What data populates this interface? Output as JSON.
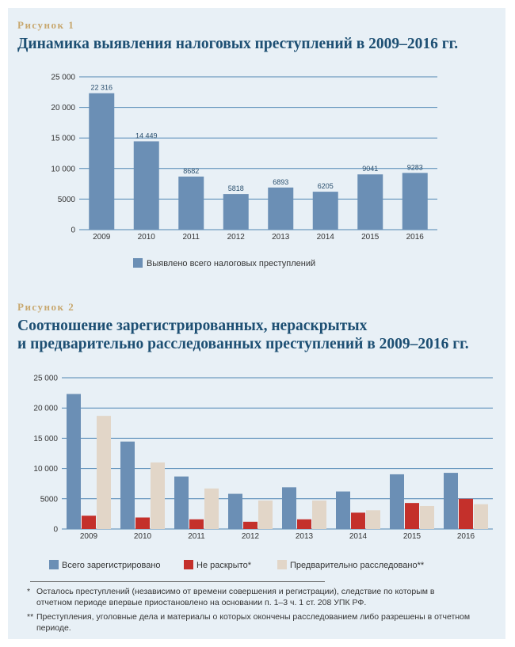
{
  "figure1": {
    "label": "Рисунок 1",
    "title": "Динамика выявления налоговых преступлений в 2009–2016 гг."
  },
  "figure2": {
    "label": "Рисунок 2",
    "title_line1": "Соотношение зарегистрированных, нераскрытых",
    "title_line2": "и предварительно расследованных преступлений в 2009–2016 гг."
  },
  "colors": {
    "registered": "#6b8fb5",
    "unsolved": "#c4302b",
    "investigated": "#e2d6c8",
    "grid": "#4f86b3",
    "axis_text": "#333333"
  },
  "chart_data": [
    {
      "type": "bar",
      "categories": [
        "2009",
        "2010",
        "2011",
        "2012",
        "2013",
        "2014",
        "2015",
        "2016"
      ],
      "series": [
        {
          "name": "Выявлено всего налоговых преступлений",
          "values": [
            22316,
            14449,
            8682,
            5818,
            6893,
            6205,
            9041,
            9283
          ]
        }
      ],
      "data_labels": [
        "22 316",
        "14 449",
        "8682",
        "5818",
        "6893",
        "6205",
        "9041",
        "9283"
      ],
      "yticks": [
        "0",
        "5000",
        "10 000",
        "15 000",
        "20 000",
        "25 000"
      ],
      "ylim": [
        0,
        25000
      ],
      "grid": true,
      "legend_position": "bottom"
    },
    {
      "type": "bar",
      "categories": [
        "2009",
        "2010",
        "2011",
        "2012",
        "2013",
        "2014",
        "2015",
        "2016"
      ],
      "series": [
        {
          "name": "Всего зарегистрировано",
          "values": [
            22316,
            14449,
            8682,
            5818,
            6893,
            6205,
            9041,
            9283
          ]
        },
        {
          "name": "Не раскрыто*",
          "values": [
            2200,
            1900,
            1600,
            1200,
            1600,
            2700,
            4300,
            5000
          ]
        },
        {
          "name": "Предварительно расследовано**",
          "values": [
            18700,
            11000,
            6700,
            4700,
            4700,
            3100,
            3800,
            4100
          ]
        }
      ],
      "yticks": [
        "0",
        "5000",
        "10 000",
        "15 000",
        "20 000",
        "25 000"
      ],
      "ylim": [
        0,
        25000
      ],
      "grid": true,
      "legend_position": "bottom"
    }
  ],
  "footnotes": [
    {
      "mark": "*",
      "text": "Осталось преступлений (независимо от времени совершения и регистрации), следствие по которым в отчетном периоде впервые приостановлено на основании п. 1–3 ч. 1 ст. 208 УПК РФ."
    },
    {
      "mark": "**",
      "text": "Преступления, уголовные дела и материалы о которых окончены расследованием либо разрешены в отчетном периоде."
    }
  ]
}
